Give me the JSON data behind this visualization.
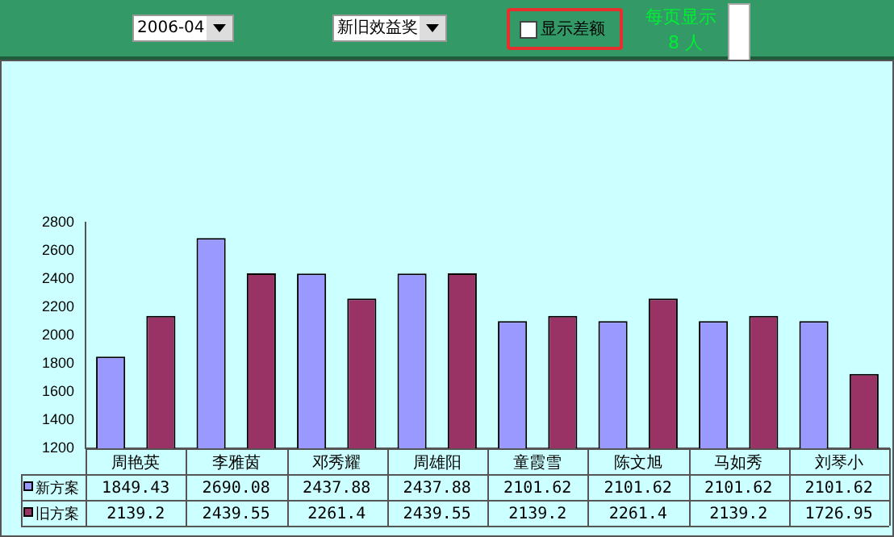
{
  "chart_data": {
    "type": "bar",
    "categories": [
      "周艳英",
      "李雅茵",
      "邓秀耀",
      "周雄阳",
      "童霞雪",
      "陈文旭",
      "马如秀",
      "刘琴小"
    ],
    "series": [
      {
        "name": "新方案",
        "color": "#9999ff",
        "values": [
          1849.43,
          2690.08,
          2437.88,
          2437.88,
          2101.62,
          2101.62,
          2101.62,
          2101.62
        ]
      },
      {
        "name": "旧方案",
        "color": "#993366",
        "values": [
          2139.2,
          2439.55,
          2261.4,
          2439.55,
          2139.2,
          2261.4,
          2139.2,
          1726.95
        ]
      }
    ],
    "ylim": [
      1200,
      2800
    ],
    "yticks": [
      1200,
      1400,
      1600,
      1800,
      2000,
      2200,
      2400,
      2600,
      2800
    ],
    "grid": false,
    "legend": "bottom",
    "data_labels": true,
    "annotations": [
      "2006-04",
      "新旧效益奖",
      "显示差额",
      "每页显示",
      "8 人"
    ]
  }
}
